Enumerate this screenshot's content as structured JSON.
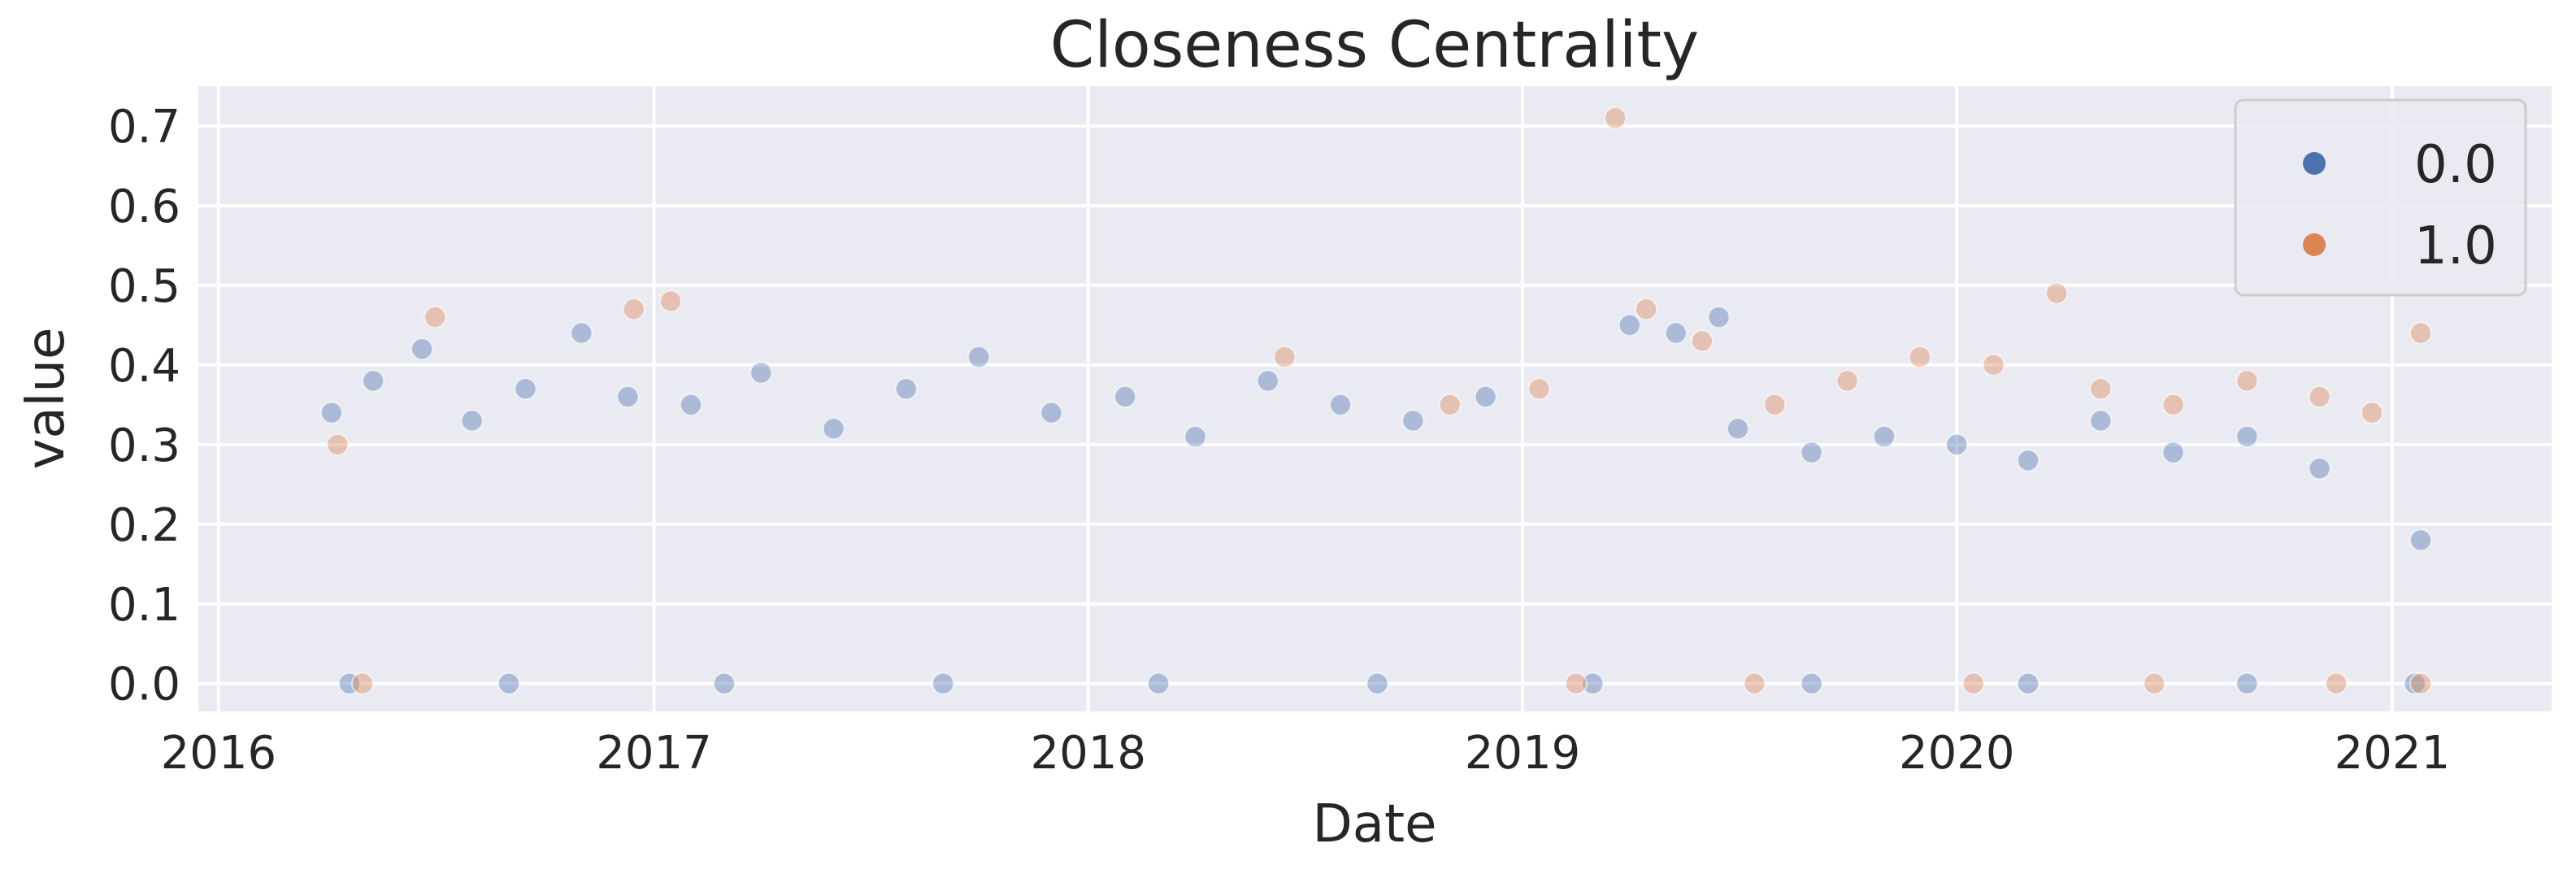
{
  "chart_data": {
    "type": "scatter",
    "title": "Closeness Centrality",
    "xlabel": "Date",
    "ylabel": "value",
    "x_axis": "date",
    "xlim": [
      "2015-12-15",
      "2021-05-15"
    ],
    "ylim": [
      -0.035,
      0.75
    ],
    "x_ticks": [
      "2016",
      "2017",
      "2018",
      "2019",
      "2020",
      "2021"
    ],
    "y_ticks": [
      "0.0",
      "0.1",
      "0.2",
      "0.3",
      "0.4",
      "0.5",
      "0.6",
      "0.7"
    ],
    "grid": true,
    "legend_position": "top-right",
    "background": "#eaeaf2",
    "series": [
      {
        "name": "0.0",
        "color": "#4c72b0",
        "points": [
          {
            "x": "2016-04-05",
            "y": 0.34
          },
          {
            "x": "2016-05-10",
            "y": 0.38
          },
          {
            "x": "2016-06-20",
            "y": 0.42
          },
          {
            "x": "2016-08-01",
            "y": 0.33
          },
          {
            "x": "2016-09-15",
            "y": 0.37
          },
          {
            "x": "2016-11-01",
            "y": 0.44
          },
          {
            "x": "2016-12-10",
            "y": 0.36
          },
          {
            "x": "2017-02-01",
            "y": 0.35
          },
          {
            "x": "2017-04-01",
            "y": 0.39
          },
          {
            "x": "2017-06-01",
            "y": 0.32
          },
          {
            "x": "2017-08-01",
            "y": 0.37
          },
          {
            "x": "2017-10-01",
            "y": 0.41
          },
          {
            "x": "2017-12-01",
            "y": 0.34
          },
          {
            "x": "2018-02-01",
            "y": 0.36
          },
          {
            "x": "2018-04-01",
            "y": 0.31
          },
          {
            "x": "2018-06-01",
            "y": 0.38
          },
          {
            "x": "2018-08-01",
            "y": 0.35
          },
          {
            "x": "2018-10-01",
            "y": 0.33
          },
          {
            "x": "2018-12-01",
            "y": 0.36
          },
          {
            "x": "2019-04-01",
            "y": 0.45
          },
          {
            "x": "2019-05-10",
            "y": 0.44
          },
          {
            "x": "2019-06-15",
            "y": 0.46
          },
          {
            "x": "2019-07-01",
            "y": 0.32
          },
          {
            "x": "2019-09-01",
            "y": 0.29
          },
          {
            "x": "2019-11-01",
            "y": 0.31
          },
          {
            "x": "2020-01-01",
            "y": 0.3
          },
          {
            "x": "2020-03-01",
            "y": 0.28
          },
          {
            "x": "2020-05-01",
            "y": 0.33
          },
          {
            "x": "2020-07-01",
            "y": 0.29
          },
          {
            "x": "2020-09-01",
            "y": 0.31
          },
          {
            "x": "2020-11-01",
            "y": 0.27
          },
          {
            "x": "2021-01-25",
            "y": 0.18
          },
          {
            "x": "2016-04-20",
            "y": 0.0
          },
          {
            "x": "2016-09-01",
            "y": 0.0
          },
          {
            "x": "2017-03-01",
            "y": 0.0
          },
          {
            "x": "2017-09-01",
            "y": 0.0
          },
          {
            "x": "2018-03-01",
            "y": 0.0
          },
          {
            "x": "2018-09-01",
            "y": 0.0
          },
          {
            "x": "2019-03-01",
            "y": 0.0
          },
          {
            "x": "2019-09-01",
            "y": 0.0
          },
          {
            "x": "2020-03-01",
            "y": 0.0
          },
          {
            "x": "2020-09-01",
            "y": 0.0
          },
          {
            "x": "2021-01-20",
            "y": 0.0
          }
        ]
      },
      {
        "name": "1.0",
        "color": "#dd8452",
        "points": [
          {
            "x": "2016-04-10",
            "y": 0.3
          },
          {
            "x": "2016-07-01",
            "y": 0.46
          },
          {
            "x": "2016-12-15",
            "y": 0.47
          },
          {
            "x": "2017-01-15",
            "y": 0.48
          },
          {
            "x": "2018-06-15",
            "y": 0.41
          },
          {
            "x": "2018-11-01",
            "y": 0.35
          },
          {
            "x": "2019-01-15",
            "y": 0.37
          },
          {
            "x": "2019-03-20",
            "y": 0.71
          },
          {
            "x": "2019-04-15",
            "y": 0.47
          },
          {
            "x": "2019-06-01",
            "y": 0.43
          },
          {
            "x": "2019-08-01",
            "y": 0.35
          },
          {
            "x": "2019-10-01",
            "y": 0.38
          },
          {
            "x": "2019-12-01",
            "y": 0.41
          },
          {
            "x": "2020-02-01",
            "y": 0.4
          },
          {
            "x": "2020-03-25",
            "y": 0.49
          },
          {
            "x": "2020-05-01",
            "y": 0.37
          },
          {
            "x": "2020-07-01",
            "y": 0.35
          },
          {
            "x": "2020-09-01",
            "y": 0.38
          },
          {
            "x": "2020-11-01",
            "y": 0.36
          },
          {
            "x": "2020-12-15",
            "y": 0.34
          },
          {
            "x": "2021-01-25",
            "y": 0.44
          },
          {
            "x": "2016-05-01",
            "y": 0.0
          },
          {
            "x": "2019-02-15",
            "y": 0.0
          },
          {
            "x": "2019-07-15",
            "y": 0.0
          },
          {
            "x": "2020-01-15",
            "y": 0.0
          },
          {
            "x": "2020-06-15",
            "y": 0.0
          },
          {
            "x": "2020-11-15",
            "y": 0.0
          },
          {
            "x": "2021-01-25",
            "y": 0.0
          }
        ]
      }
    ]
  }
}
